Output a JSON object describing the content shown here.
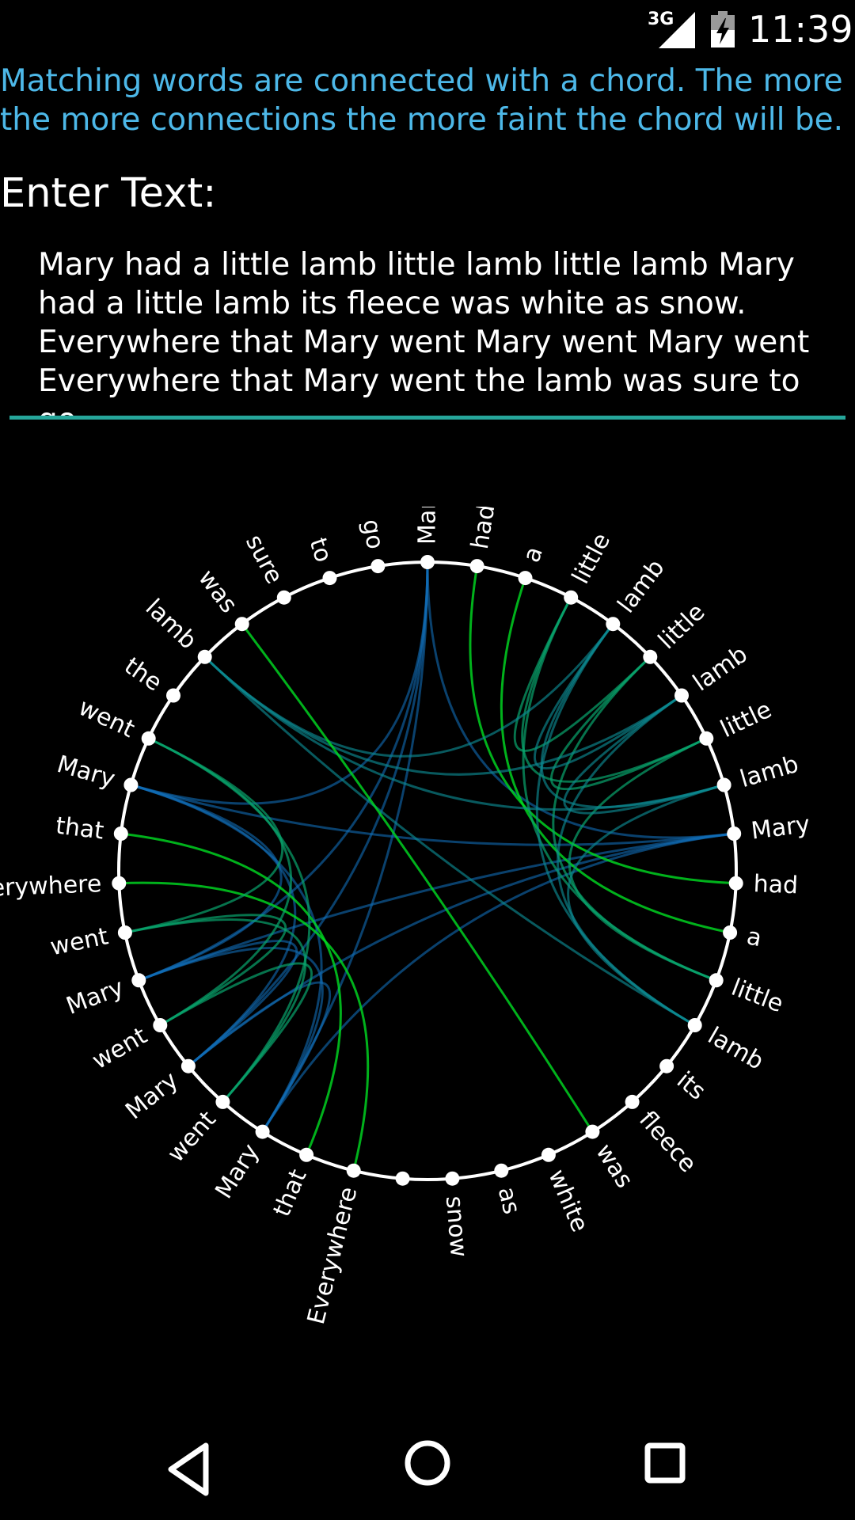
{
  "status_bar": {
    "network_type": "3G",
    "time": "11:39"
  },
  "instruction": "Matching words are connected with a chord. The more the more connections the more faint the chord will be.",
  "input": {
    "label": "Enter Text:",
    "value": "Mary had a little lamb little lamb little lamb Mary had a little lamb its fleece was white as snow. Everywhere that Mary went Mary went Mary went Everywhere that Mary went the lamb was sure to go."
  },
  "chord": {
    "words": [
      "Mary",
      "had",
      "a",
      "little",
      "lamb",
      "little",
      "lamb",
      "little",
      "lamb",
      "Mary",
      "had",
      "a",
      "little",
      "lamb",
      "its",
      "fleece",
      "was",
      "white",
      "as",
      "snow",
      "",
      "Everywhere",
      "that",
      "Mary",
      "went",
      "Mary",
      "went",
      "Mary",
      "went",
      "Everywhere",
      "that",
      "Mary",
      "went",
      "the",
      "lamb",
      "was",
      "sure",
      "to",
      "go"
    ],
    "colors": {
      "few_connections": "#00dd22",
      "many_connections": "#1a33ff",
      "ring": "#ffffff"
    }
  },
  "nav": {
    "back": "back-icon",
    "home": "home-icon",
    "recents": "recents-icon"
  }
}
